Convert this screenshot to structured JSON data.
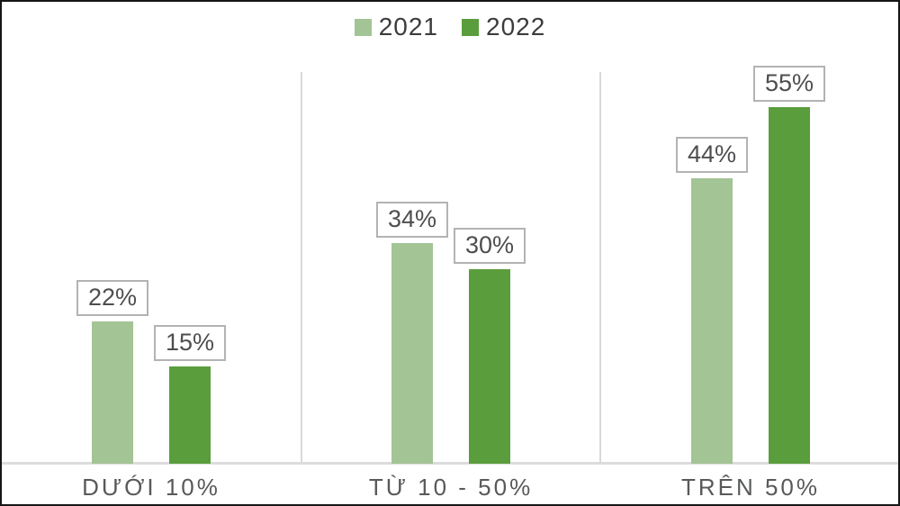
{
  "chart_data": {
    "type": "bar",
    "title": "",
    "categories": [
      "DƯỚI 10%",
      "TỪ 10 - 50%",
      "TRÊN 50%"
    ],
    "series": [
      {
        "name": "2021",
        "color": "#a3c494",
        "values": [
          22,
          34,
          44
        ]
      },
      {
        "name": "2022",
        "color": "#5a9d3c",
        "values": [
          15,
          30,
          55
        ]
      }
    ],
    "value_suffix": "%",
    "data_labels": [
      "22%",
      "15%",
      "34%",
      "30%",
      "44%",
      "55%"
    ],
    "ylim": [
      0,
      60
    ],
    "grid": false,
    "legend_position": "top-center",
    "xlabel": "",
    "ylabel": ""
  },
  "colors": {
    "series_2021": "#a3c494",
    "series_2022": "#5a9d3c",
    "divider": "#d9d9d9",
    "baseline": "#dcdcdc",
    "value_box_border": "#b3b3b3",
    "value_text": "#4d4e50",
    "category_text": "#58595b",
    "legend_text": "#3b3c3e",
    "frame_border": "#161616"
  }
}
